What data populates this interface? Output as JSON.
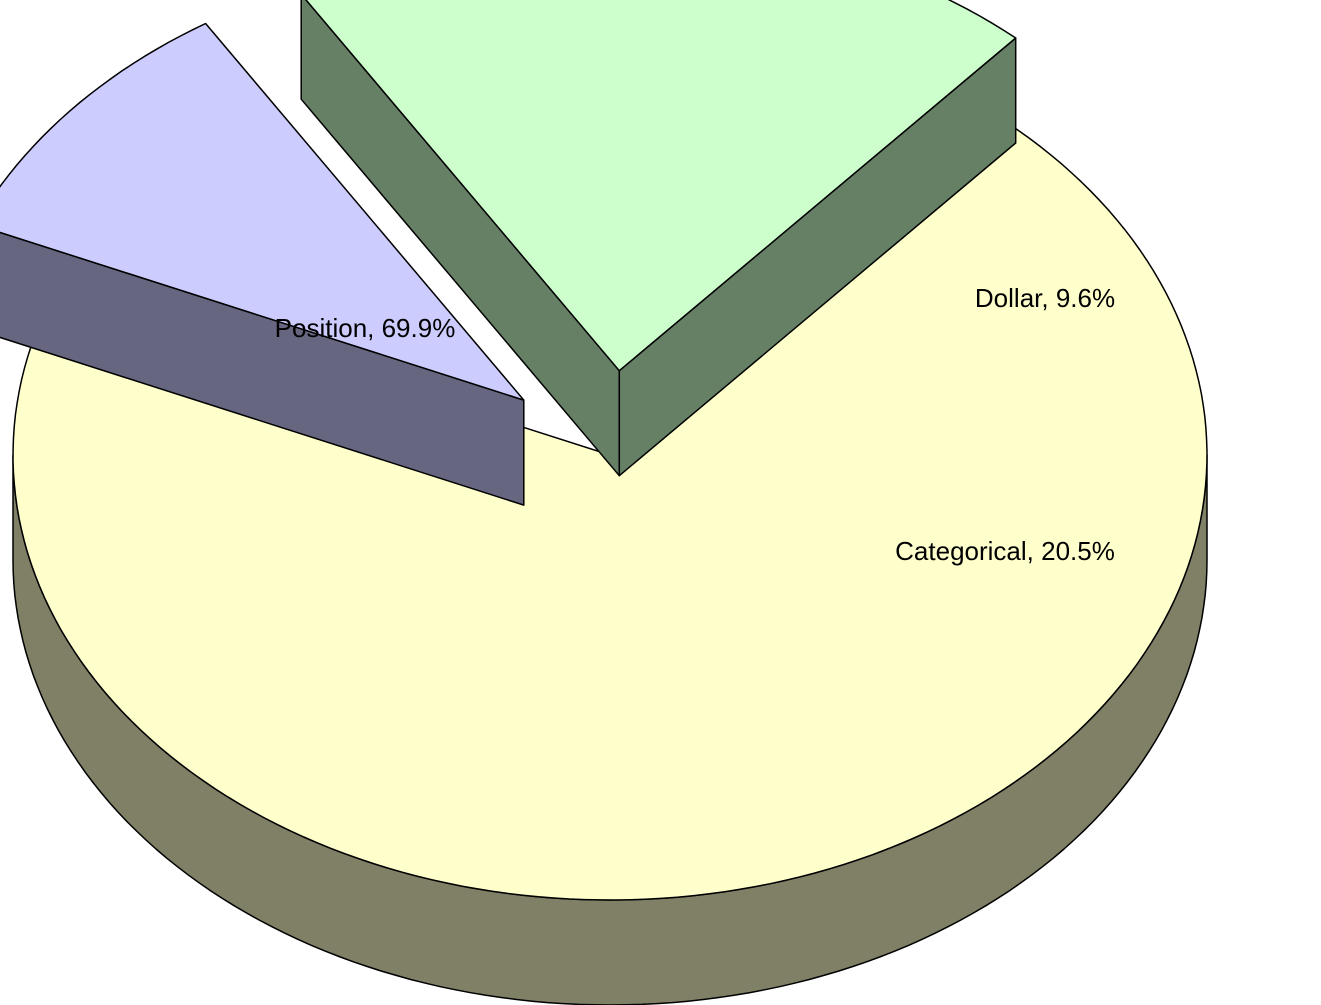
{
  "chart_data": {
    "type": "pie",
    "values": [
      69.9,
      9.6,
      20.5
    ],
    "value_labels": [
      "Position, 69.9%",
      "Dollar, 9.6%",
      "Categorical, 20.5%"
    ],
    "colors": [
      "#FFFFCC",
      "#CCCCFF",
      "#CCFFCC"
    ]
  }
}
